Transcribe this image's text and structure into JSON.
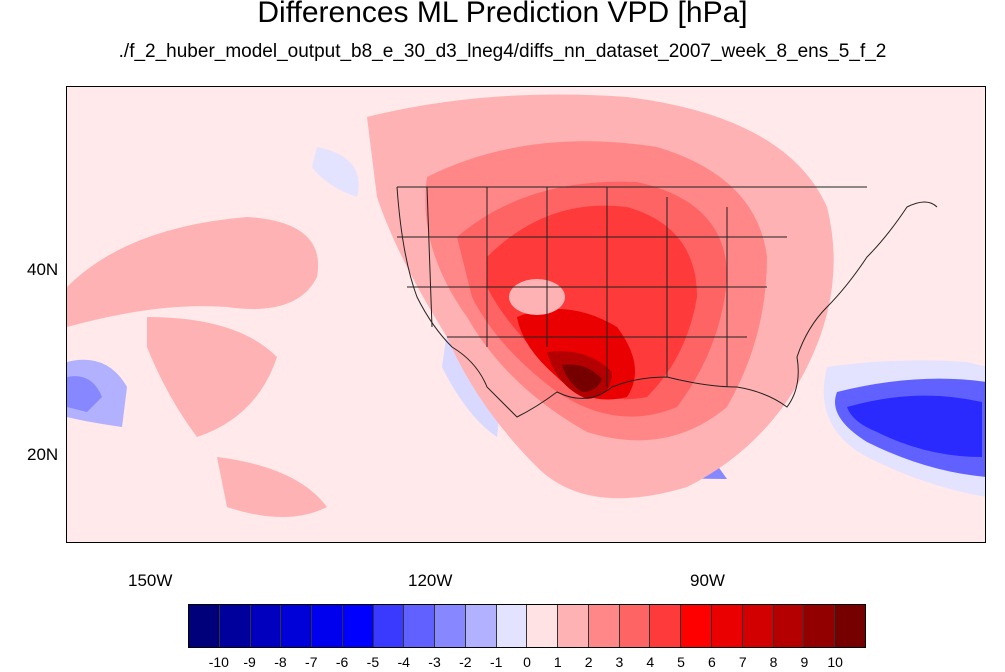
{
  "title": "Differences ML Prediction VPD [hPa]",
  "subtitle": "./f_2_huber_model_output_b8_e_30_d3_lneg4/diffs_nn_dataset_2007_week_8_ens_5_f_2",
  "map": {
    "lat_labels": [
      "40N",
      "20N"
    ],
    "lon_labels": [
      "150W",
      "120W",
      "90W"
    ]
  },
  "colorbar": {
    "labels": [
      "-10",
      "-9",
      "-8",
      "-7",
      "-6",
      "-5",
      "-4",
      "-3",
      "-2",
      "-1",
      "0",
      "1",
      "2",
      "3",
      "4",
      "5",
      "6",
      "7",
      "8",
      "9",
      "10"
    ],
    "colors": [
      "#00007a",
      "#00009c",
      "#0000be",
      "#0000d8",
      "#0000ee",
      "#0000ff",
      "#3a3aff",
      "#6161ff",
      "#8787ff",
      "#b1b1ff",
      "#e3e3ff",
      "#ffe3e4",
      "#ffb2b3",
      "#ff8788",
      "#ff6465",
      "#ff3a3b",
      "#ff0000",
      "#ea0000",
      "#d20000",
      "#b40000",
      "#920000",
      "#760000"
    ]
  }
}
